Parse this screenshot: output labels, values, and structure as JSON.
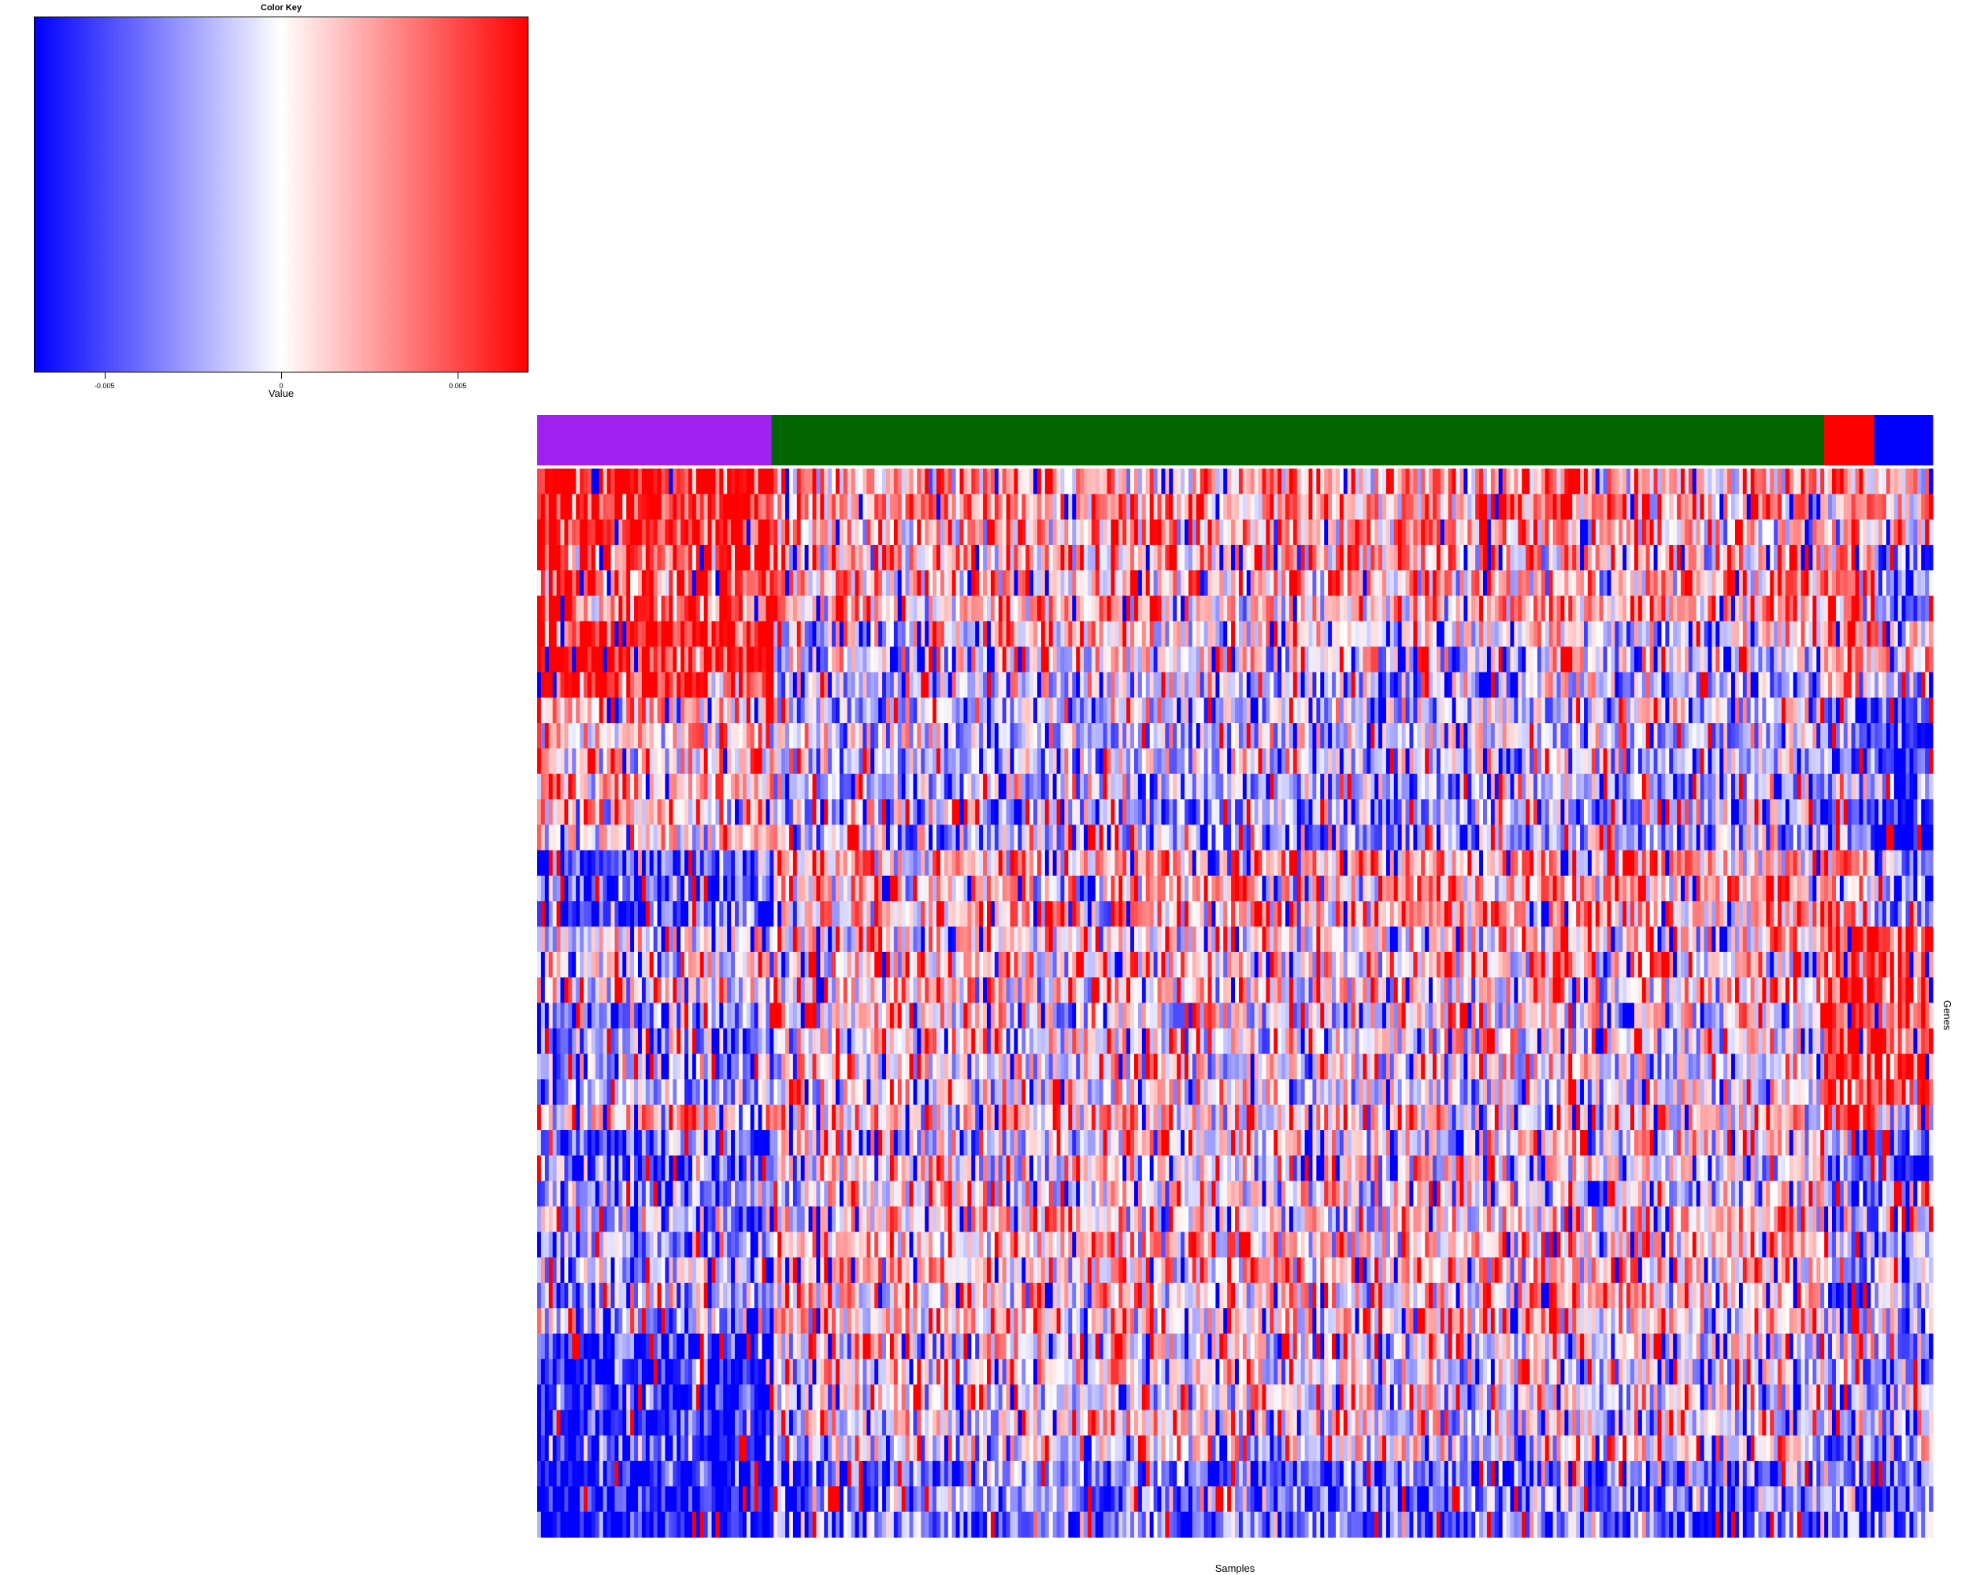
{
  "chart_data": [
    {
      "type": "colorbar",
      "title": "Color Key",
      "xlabel": "Value",
      "range": [
        -0.007,
        0.007
      ],
      "ticks": [
        -0.005,
        0,
        0.005
      ],
      "tick_labels": [
        "-0.005",
        "0",
        "0.005"
      ],
      "colors": {
        "low": "#0000ff",
        "mid": "#ffffff",
        "high": "#ff0000"
      }
    },
    {
      "type": "heatmap",
      "xlabel": "Samples",
      "ylabel": "Genes",
      "n_samples": 360,
      "n_genes": 42,
      "seed": 7,
      "column_groups": [
        {
          "color": "#a020f0",
          "fraction": 0.168
        },
        {
          "color": "#006400",
          "fraction": 0.754
        },
        {
          "color": "#ff0000",
          "fraction": 0.036
        },
        {
          "color": "#0000ff",
          "fraction": 0.042
        }
      ],
      "gene_blocks": [
        {
          "rows": 2,
          "profile": [
            0.95,
            0.35,
            0.25,
            0.3
          ]
        },
        {
          "rows": 1,
          "profile": [
            0.85,
            0.25,
            0.2,
            0.05
          ]
        },
        {
          "rows": 3,
          "profile": [
            0.7,
            0.25,
            0.55,
            -0.6
          ]
        },
        {
          "rows": 2,
          "profile": [
            0.9,
            -0.05,
            0.45,
            0.3
          ]
        },
        {
          "rows": 1,
          "profile": [
            0.75,
            -0.25,
            0.2,
            -0.3
          ]
        },
        {
          "rows": 3,
          "profile": [
            0.2,
            -0.2,
            -0.6,
            -0.7
          ]
        },
        {
          "rows": 1,
          "profile": [
            0.4,
            -0.25,
            -0.1,
            -0.2
          ]
        },
        {
          "rows": 2,
          "profile": [
            0.1,
            -0.3,
            -0.4,
            -0.95
          ]
        },
        {
          "rows": 3,
          "profile": [
            -0.7,
            0.3,
            0.2,
            -0.4
          ]
        },
        {
          "rows": 3,
          "profile": [
            0.0,
            0.1,
            0.9,
            0.8
          ]
        },
        {
          "rows": 4,
          "profile": [
            -0.4,
            0.0,
            0.8,
            0.7
          ]
        },
        {
          "rows": 1,
          "profile": [
            0.2,
            0.1,
            0.6,
            0.1
          ]
        },
        {
          "rows": 4,
          "profile": [
            -0.45,
            0.05,
            -0.4,
            -0.4
          ]
        },
        {
          "rows": 4,
          "profile": [
            -0.3,
            0.2,
            -0.2,
            -0.3
          ]
        },
        {
          "rows": 5,
          "profile": [
            -0.8,
            0.0,
            -0.2,
            -0.3
          ]
        },
        {
          "rows": 3,
          "profile": [
            -0.98,
            -0.5,
            -0.5,
            -0.6
          ]
        }
      ]
    }
  ]
}
